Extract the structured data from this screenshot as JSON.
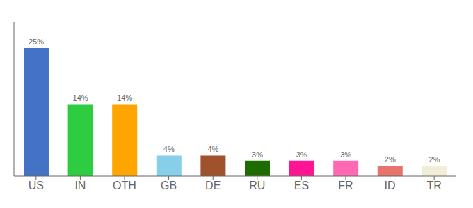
{
  "chart_data": {
    "type": "bar",
    "categories": [
      "US",
      "IN",
      "OTH",
      "GB",
      "DE",
      "RU",
      "ES",
      "FR",
      "ID",
      "TR"
    ],
    "values": [
      25,
      14,
      14,
      4,
      4,
      3,
      3,
      3,
      2,
      2
    ],
    "value_labels": [
      "25%",
      "14%",
      "14%",
      "4%",
      "4%",
      "3%",
      "3%",
      "3%",
      "2%",
      "2%"
    ],
    "colors": [
      "#4472C4",
      "#2ECC40",
      "#FFA500",
      "#87CEEB",
      "#A0522D",
      "#1E6B00",
      "#FF1493",
      "#FF69B4",
      "#E8736C",
      "#F0EDD8"
    ],
    "ylim": [
      0,
      30
    ],
    "data_labels": true,
    "tick_labels": "x",
    "grid": false
  }
}
